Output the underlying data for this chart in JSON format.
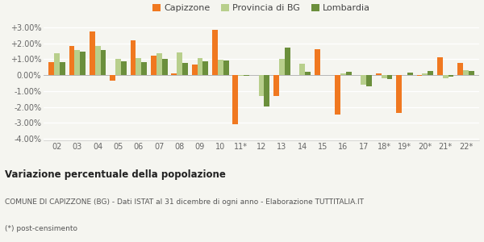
{
  "categories": [
    "02",
    "03",
    "04",
    "05",
    "06",
    "07",
    "08",
    "09",
    "10",
    "11*",
    "12",
    "13",
    "14",
    "15",
    "16",
    "17",
    "18*",
    "19*",
    "20*",
    "21*",
    "22*"
  ],
  "capizzone": [
    0.8,
    1.85,
    2.75,
    -0.35,
    2.2,
    1.2,
    0.1,
    0.65,
    2.85,
    -3.1,
    0.0,
    -1.3,
    0.0,
    1.65,
    -2.5,
    0.0,
    0.1,
    -2.4,
    -0.05,
    1.1,
    0.75
  ],
  "provincia_bg": [
    1.35,
    1.6,
    1.85,
    1.0,
    1.05,
    1.35,
    1.4,
    1.05,
    0.95,
    -0.05,
    -1.3,
    1.0,
    0.7,
    0.0,
    0.1,
    -0.6,
    -0.2,
    0.0,
    0.1,
    -0.2,
    0.3
  ],
  "lombardia": [
    0.8,
    1.45,
    1.55,
    0.85,
    0.8,
    1.0,
    0.75,
    0.85,
    0.9,
    -0.05,
    -1.95,
    1.75,
    0.2,
    0.0,
    0.2,
    -0.7,
    -0.25,
    0.15,
    0.25,
    -0.1,
    0.25
  ],
  "capizzone_color": "#f07820",
  "provincia_color": "#b8cf8c",
  "lombardia_color": "#6b8f3c",
  "bg_color": "#f5f5f0",
  "title_bold": "Variazione percentuale della popolazione",
  "subtitle": "COMUNE DI CAPIZZONE (BG) - Dati ISTAT al 31 dicembre di ogni anno - Elaborazione TUTTITALIA.IT",
  "footnote": "(*) post-censimento",
  "ylim": [
    -4.1,
    3.5
  ],
  "yticks": [
    -4.0,
    -3.0,
    -2.0,
    -1.0,
    0.0,
    1.0,
    2.0,
    3.0
  ],
  "legend_labels": [
    "Capizzone",
    "Provincia di BG",
    "Lombardia"
  ],
  "bar_width": 0.27
}
